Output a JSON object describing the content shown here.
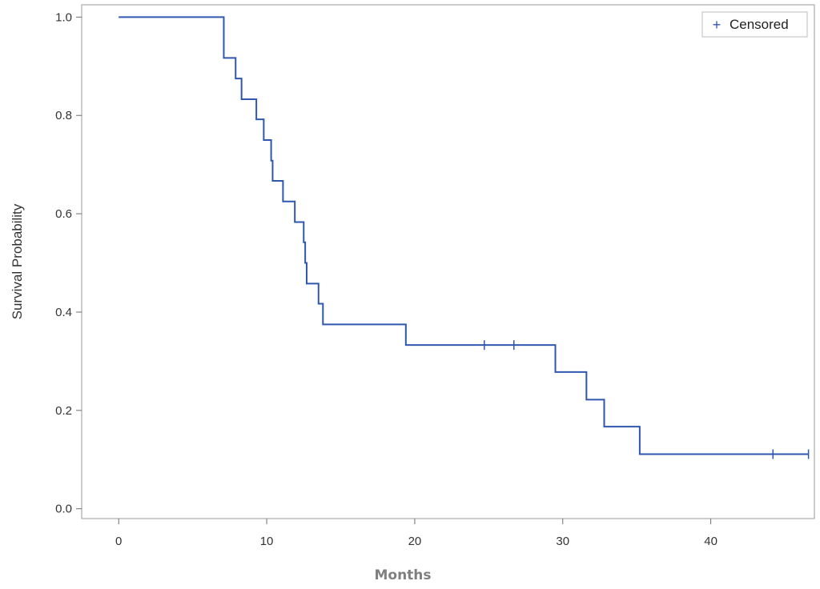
{
  "chart_data": {
    "type": "line",
    "subtype": "kaplan-meier",
    "title": "",
    "xlabel": "Months",
    "ylabel": "Survival Probability",
    "xlim": [
      -2.5,
      47
    ],
    "ylim": [
      -0.02,
      1.025
    ],
    "x_ticks": [
      0,
      10,
      20,
      30,
      40
    ],
    "y_ticks": [
      0.0,
      0.2,
      0.4,
      0.6,
      0.8,
      1.0
    ],
    "x_tick_labels": [
      "0",
      "10",
      "20",
      "30",
      "40"
    ],
    "y_tick_labels": [
      "0.0",
      "0.2",
      "0.4",
      "0.6",
      "0.8",
      "1.0"
    ],
    "grid": false,
    "legend": {
      "position": "top-right",
      "entries": [
        {
          "symbol": "+",
          "label": "Censored"
        }
      ]
    },
    "color": "#2f57b0",
    "series": [
      {
        "step_points": [
          {
            "x": 0.0,
            "y": 1.0
          },
          {
            "x": 7.1,
            "y": 0.917
          },
          {
            "x": 7.9,
            "y": 0.875
          },
          {
            "x": 8.3,
            "y": 0.833
          },
          {
            "x": 9.3,
            "y": 0.792
          },
          {
            "x": 9.8,
            "y": 0.75
          },
          {
            "x": 10.3,
            "y": 0.708
          },
          {
            "x": 10.4,
            "y": 0.667
          },
          {
            "x": 11.1,
            "y": 0.625
          },
          {
            "x": 11.9,
            "y": 0.583
          },
          {
            "x": 12.5,
            "y": 0.542
          },
          {
            "x": 12.6,
            "y": 0.5
          },
          {
            "x": 12.7,
            "y": 0.458
          },
          {
            "x": 13.5,
            "y": 0.417
          },
          {
            "x": 13.8,
            "y": 0.375
          },
          {
            "x": 19.4,
            "y": 0.333
          },
          {
            "x": 29.5,
            "y": 0.278
          },
          {
            "x": 31.6,
            "y": 0.222
          },
          {
            "x": 32.8,
            "y": 0.167
          },
          {
            "x": 35.2,
            "y": 0.111
          }
        ],
        "end_x": 46.6,
        "censored": [
          {
            "x": 24.7,
            "y": 0.333
          },
          {
            "x": 26.7,
            "y": 0.333
          },
          {
            "x": 44.2,
            "y": 0.111
          },
          {
            "x": 46.6,
            "y": 0.111
          }
        ]
      }
    ]
  }
}
